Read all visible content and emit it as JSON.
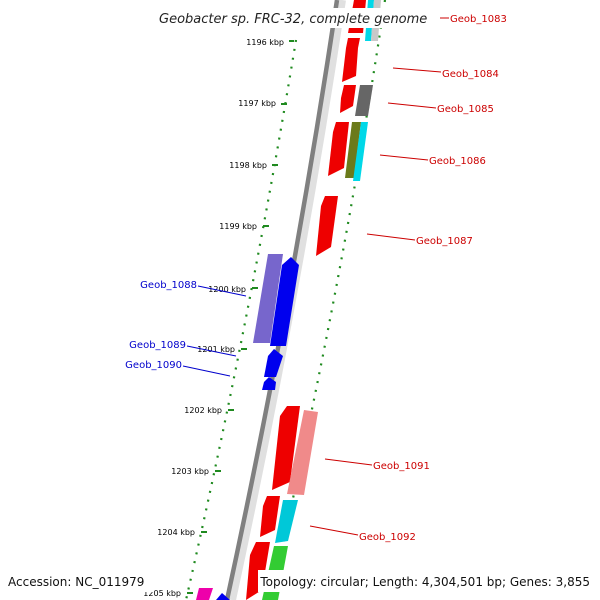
{
  "title": "Geobacter sp. FRC-32, complete genome",
  "footer": {
    "accession": "Accession: NC_011979",
    "summary": "Topology: circular; Length: 4,304,501 bp; Genes: 3,855"
  },
  "ruler": [
    "1196 kbp",
    "1197 kbp",
    "1198 kbp",
    "1199 kbp",
    "1200 kbp",
    "1201 kbp",
    "1202 kbp",
    "1203 kbp",
    "1204 kbp",
    "1205 kbp"
  ],
  "genes_forward": [
    {
      "label": "Geob_1083",
      "color": "#cc0000"
    },
    {
      "label": "Geob_1084",
      "color": "#cc0000"
    },
    {
      "label": "Geob_1085",
      "color": "#cc0000"
    },
    {
      "label": "Geob_1086",
      "color": "#cc0000"
    },
    {
      "label": "Geob_1087",
      "color": "#cc0000"
    },
    {
      "label": "Geob_1091",
      "color": "#cc0000"
    },
    {
      "label": "Geob_1092",
      "color": "#cc0000"
    }
  ],
  "genes_reverse": [
    {
      "label": "Geob_1088",
      "color": "#0000cc"
    },
    {
      "label": "Geob_1089",
      "color": "#0000cc"
    },
    {
      "label": "Geob_1090",
      "color": "#0000cc"
    }
  ]
}
